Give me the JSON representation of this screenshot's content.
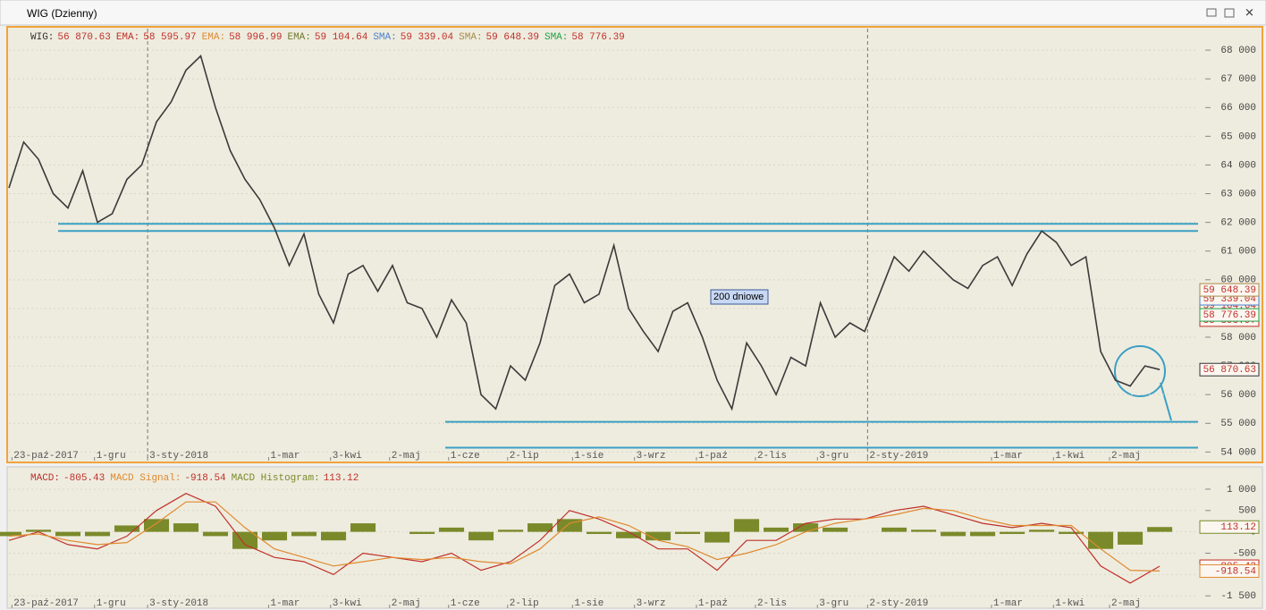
{
  "window": {
    "title": "WIG (Dzienny)"
  },
  "chart_data": [
    {
      "type": "line",
      "x": [
        0,
        5,
        10,
        15,
        20,
        25,
        30,
        35,
        40,
        45,
        50,
        55,
        60,
        65,
        70,
        75,
        80,
        85,
        90,
        95,
        100,
        105,
        110,
        115,
        120,
        125,
        130,
        135,
        140,
        145,
        150,
        155,
        160,
        165,
        170,
        175,
        180,
        185,
        190,
        195,
        200,
        205,
        210,
        215,
        220,
        225,
        230,
        235,
        240,
        245,
        250,
        255,
        260,
        265,
        270,
        275,
        280,
        285,
        290,
        295,
        300,
        305,
        310,
        315,
        320,
        325,
        330,
        335,
        340,
        345,
        350,
        355,
        360,
        365,
        370,
        375,
        380,
        385,
        390
      ],
      "series": [
        {
          "name": "WIG",
          "color": "#3a3a3a",
          "values": [
            63200,
            64800,
            64200,
            63000,
            62500,
            63800,
            62000,
            62300,
            63500,
            64000,
            65500,
            66200,
            67300,
            67800,
            66000,
            64500,
            63500,
            62800,
            61800,
            60500,
            61600,
            59500,
            58500,
            60200,
            60500,
            59600,
            60500,
            59200,
            59000,
            58000,
            59300,
            58500,
            56000,
            55500,
            57000,
            56500,
            57800,
            59800,
            60200,
            59200,
            59500,
            61200,
            59000,
            58200,
            57500,
            58900,
            59200,
            58000,
            56500,
            55500,
            57800,
            57000,
            56000,
            57300,
            57000,
            59200,
            58000,
            58500,
            58200,
            59500,
            60800,
            60300,
            61000,
            60500,
            60000,
            59700,
            60500,
            60800,
            59800,
            60900,
            61700,
            61300,
            60500,
            60800,
            57500,
            56500,
            56300,
            57000,
            56870.63
          ]
        }
      ],
      "legend_items": [
        {
          "name": "WIG:",
          "color": "#333333",
          "value": 56870.63,
          "value_label": "56 870.63"
        },
        {
          "name": "EMA:",
          "color": "#c0302a",
          "value": 58595.97,
          "value_label": "58 595.97"
        },
        {
          "name": "EMA:",
          "color": "#e0892f",
          "value": 58996.99,
          "value_label": "58 996.99"
        },
        {
          "name": "EMA:",
          "color": "#6f7a2c",
          "value": 59104.64,
          "value_label": "59 104.64"
        },
        {
          "name": "SMA:",
          "color": "#4a7fcf",
          "value": 59339.04,
          "value_label": "59 339.04"
        },
        {
          "name": "SMA:",
          "color": "#a88a4a",
          "value": 59648.39,
          "value_label": "59 648.39"
        },
        {
          "name": "SMA:",
          "color": "#22a24a",
          "value": 58776.39,
          "value_label": "58 776.39"
        }
      ],
      "levels": [
        61950,
        61700,
        55050,
        54150
      ],
      "level_color": "#3a9fc4",
      "annotation": "200 dniowe",
      "separators": [
        47,
        291
      ],
      "xlim": [
        0,
        403
      ],
      "xticks": [
        {
          "value": 1,
          "label": "23-paź-2017"
        },
        {
          "value": 29,
          "label": "1-gru"
        },
        {
          "value": 47,
          "label": "3-sty-2018"
        },
        {
          "value": 88,
          "label": "1-mar"
        },
        {
          "value": 109,
          "label": "3-kwi"
        },
        {
          "value": 129,
          "label": "2-maj"
        },
        {
          "value": 149,
          "label": "1-cze"
        },
        {
          "value": 169,
          "label": "2-lip"
        },
        {
          "value": 191,
          "label": "1-sie"
        },
        {
          "value": 212,
          "label": "3-wrz"
        },
        {
          "value": 233,
          "label": "1-paź"
        },
        {
          "value": 253,
          "label": "2-lis"
        },
        {
          "value": 274,
          "label": "3-gru"
        },
        {
          "value": 291,
          "label": "2-sty-2019"
        },
        {
          "value": 333,
          "label": "1-mar"
        },
        {
          "value": 354,
          "label": "1-kwi"
        },
        {
          "value": 373,
          "label": "2-maj"
        }
      ],
      "ylim": [
        53700,
        68750
      ],
      "yticks": [
        {
          "value": 54000,
          "label": "54 000"
        },
        {
          "value": 55000,
          "label": "55 000"
        },
        {
          "value": 56000,
          "label": "56 000"
        },
        {
          "value": 57000,
          "label": "57 000"
        },
        {
          "value": 58000,
          "label": "58 000"
        },
        {
          "value": 59000,
          "label": "59 000"
        },
        {
          "value": 60000,
          "label": "60 000"
        },
        {
          "value": 61000,
          "label": "61 000"
        },
        {
          "value": 62000,
          "label": "62 000"
        },
        {
          "value": 63000,
          "label": "63 000"
        },
        {
          "value": 64000,
          "label": "64 000"
        },
        {
          "value": 65000,
          "label": "65 000"
        },
        {
          "value": 66000,
          "label": "66 000"
        },
        {
          "value": 67000,
          "label": "67 000"
        },
        {
          "value": 68000,
          "label": "68 000"
        }
      ]
    },
    {
      "type": "line",
      "x": [
        0,
        10,
        20,
        30,
        40,
        50,
        60,
        70,
        80,
        90,
        100,
        110,
        120,
        130,
        140,
        150,
        160,
        170,
        180,
        190,
        200,
        210,
        220,
        230,
        240,
        250,
        260,
        270,
        280,
        290,
        300,
        310,
        320,
        330,
        340,
        350,
        360,
        370,
        380,
        390
      ],
      "series": [
        {
          "name": "MACD Histogram:",
          "type": "bar",
          "color": "#7a8a2a",
          "values": [
            -100,
            50,
            -100,
            -100,
            150,
            300,
            200,
            -100,
            -400,
            -200,
            -100,
            -200,
            200,
            0,
            -50,
            100,
            -200,
            50,
            200,
            300,
            -50,
            -150,
            -200,
            -50,
            -250,
            300,
            100,
            200,
            100,
            0,
            100,
            50,
            -100,
            -100,
            -50,
            50,
            -50,
            -400,
            -300,
            113.12
          ]
        },
        {
          "name": "MACD:",
          "color": "#c0302a",
          "values": [
            -200,
            0,
            -300,
            -400,
            -100,
            500,
            900,
            600,
            -300,
            -600,
            -700,
            -1000,
            -500,
            -600,
            -700,
            -500,
            -900,
            -700,
            -200,
            500,
            300,
            0,
            -400,
            -400,
            -900,
            -200,
            -200,
            200,
            300,
            300,
            500,
            600,
            400,
            200,
            100,
            200,
            100,
            -800,
            -1200,
            -805.43
          ]
        },
        {
          "name": "MACD Signal:",
          "color": "#e0892f",
          "values": [
            -100,
            -50,
            -200,
            -300,
            -250,
            200,
            700,
            700,
            100,
            -400,
            -600,
            -800,
            -700,
            -600,
            -650,
            -600,
            -700,
            -750,
            -400,
            200,
            350,
            150,
            -200,
            -350,
            -650,
            -500,
            -300,
            0,
            200,
            300,
            400,
            550,
            500,
            300,
            150,
            150,
            150,
            -400,
            -900,
            -918.54
          ]
        }
      ],
      "legend_order": [
        1,
        2,
        0
      ],
      "xlim": [
        0,
        403
      ],
      "xticks": [
        {
          "value": 1,
          "label": "23-paź-2017"
        },
        {
          "value": 29,
          "label": "1-gru"
        },
        {
          "value": 47,
          "label": "3-sty-2018"
        },
        {
          "value": 88,
          "label": "1-mar"
        },
        {
          "value": 109,
          "label": "3-kwi"
        },
        {
          "value": 129,
          "label": "2-maj"
        },
        {
          "value": 149,
          "label": "1-cze"
        },
        {
          "value": 169,
          "label": "2-lip"
        },
        {
          "value": 191,
          "label": "1-sie"
        },
        {
          "value": 212,
          "label": "3-wrz"
        },
        {
          "value": 233,
          "label": "1-paź"
        },
        {
          "value": 253,
          "label": "2-lis"
        },
        {
          "value": 274,
          "label": "3-gru"
        },
        {
          "value": 291,
          "label": "2-sty-2019"
        },
        {
          "value": 333,
          "label": "1-mar"
        },
        {
          "value": 354,
          "label": "1-kwi"
        },
        {
          "value": 373,
          "label": "2-maj"
        }
      ],
      "ylim": [
        -1790,
        1460
      ],
      "yticks": [
        {
          "value": 1000,
          "label": "1 000"
        },
        500,
        0,
        -500,
        {
          "value": -1000,
          "label": "-1 000"
        },
        {
          "value": -1500,
          "label": "-1 500"
        }
      ]
    }
  ]
}
